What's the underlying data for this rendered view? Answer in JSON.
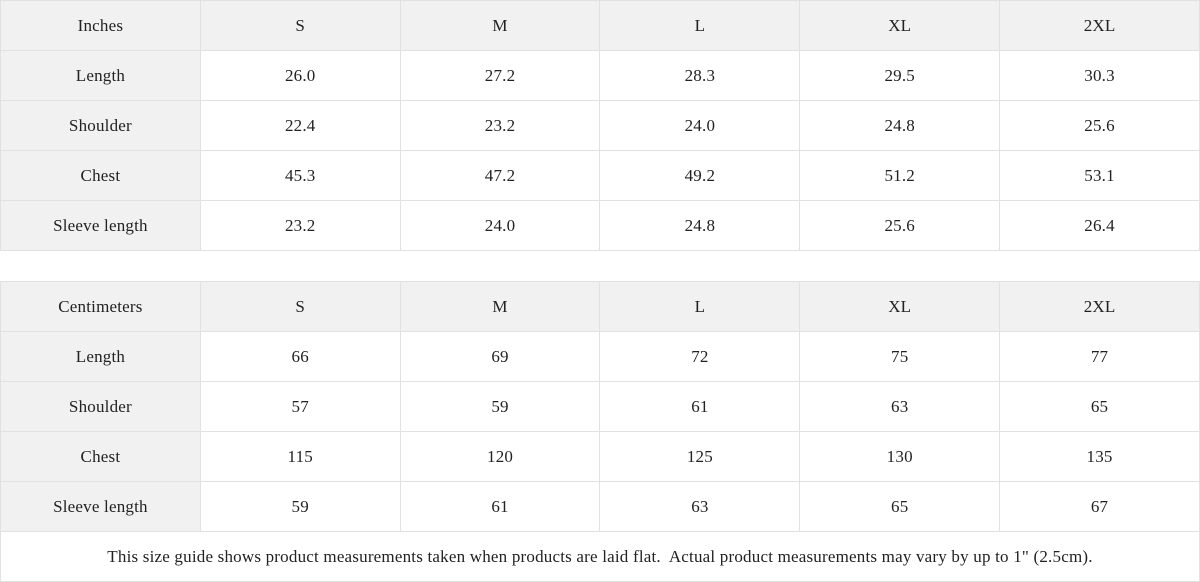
{
  "colors": {
    "header_bg": "#f1f1f1",
    "border": "#e1e1e1",
    "text": "#222222",
    "page_bg": "#ffffff"
  },
  "inches_table": {
    "unit_label": "Inches",
    "size_headers": [
      "S",
      "M",
      "L",
      "XL",
      "2XL"
    ],
    "rows": [
      {
        "label": "Length",
        "values": [
          "26.0",
          "27.2",
          "28.3",
          "29.5",
          "30.3"
        ]
      },
      {
        "label": "Shoulder",
        "values": [
          "22.4",
          "23.2",
          "24.0",
          "24.8",
          "25.6"
        ]
      },
      {
        "label": "Chest",
        "values": [
          "45.3",
          "47.2",
          "49.2",
          "51.2",
          "53.1"
        ]
      },
      {
        "label": "Sleeve length",
        "values": [
          "23.2",
          "24.0",
          "24.8",
          "25.6",
          "26.4"
        ]
      }
    ]
  },
  "centimeters_table": {
    "unit_label": "Centimeters",
    "size_headers": [
      "S",
      "M",
      "L",
      "XL",
      "2XL"
    ],
    "rows": [
      {
        "label": "Length",
        "values": [
          "66",
          "69",
          "72",
          "75",
          "77"
        ]
      },
      {
        "label": "Shoulder",
        "values": [
          "57",
          "59",
          "61",
          "63",
          "65"
        ]
      },
      {
        "label": "Chest",
        "values": [
          "115",
          "120",
          "125",
          "130",
          "135"
        ]
      },
      {
        "label": "Sleeve length",
        "values": [
          "59",
          "61",
          "63",
          "65",
          "67"
        ]
      }
    ]
  },
  "footnote": "This size guide shows product measurements taken when products are laid flat.  Actual product measurements may vary by up to 1\" (2.5cm).",
  "chart_data": [
    {
      "type": "table",
      "title": "Inches",
      "columns": [
        "Inches",
        "S",
        "M",
        "L",
        "XL",
        "2XL"
      ],
      "rows": [
        [
          "Length",
          26.0,
          27.2,
          28.3,
          29.5,
          30.3
        ],
        [
          "Shoulder",
          22.4,
          23.2,
          24.0,
          24.8,
          25.6
        ],
        [
          "Chest",
          45.3,
          47.2,
          49.2,
          51.2,
          53.1
        ],
        [
          "Sleeve length",
          23.2,
          24.0,
          24.8,
          25.6,
          26.4
        ]
      ]
    },
    {
      "type": "table",
      "title": "Centimeters",
      "columns": [
        "Centimeters",
        "S",
        "M",
        "L",
        "XL",
        "2XL"
      ],
      "rows": [
        [
          "Length",
          66,
          69,
          72,
          75,
          77
        ],
        [
          "Shoulder",
          57,
          59,
          61,
          63,
          65
        ],
        [
          "Chest",
          115,
          120,
          125,
          130,
          135
        ],
        [
          "Sleeve length",
          59,
          61,
          63,
          65,
          67
        ]
      ]
    }
  ]
}
